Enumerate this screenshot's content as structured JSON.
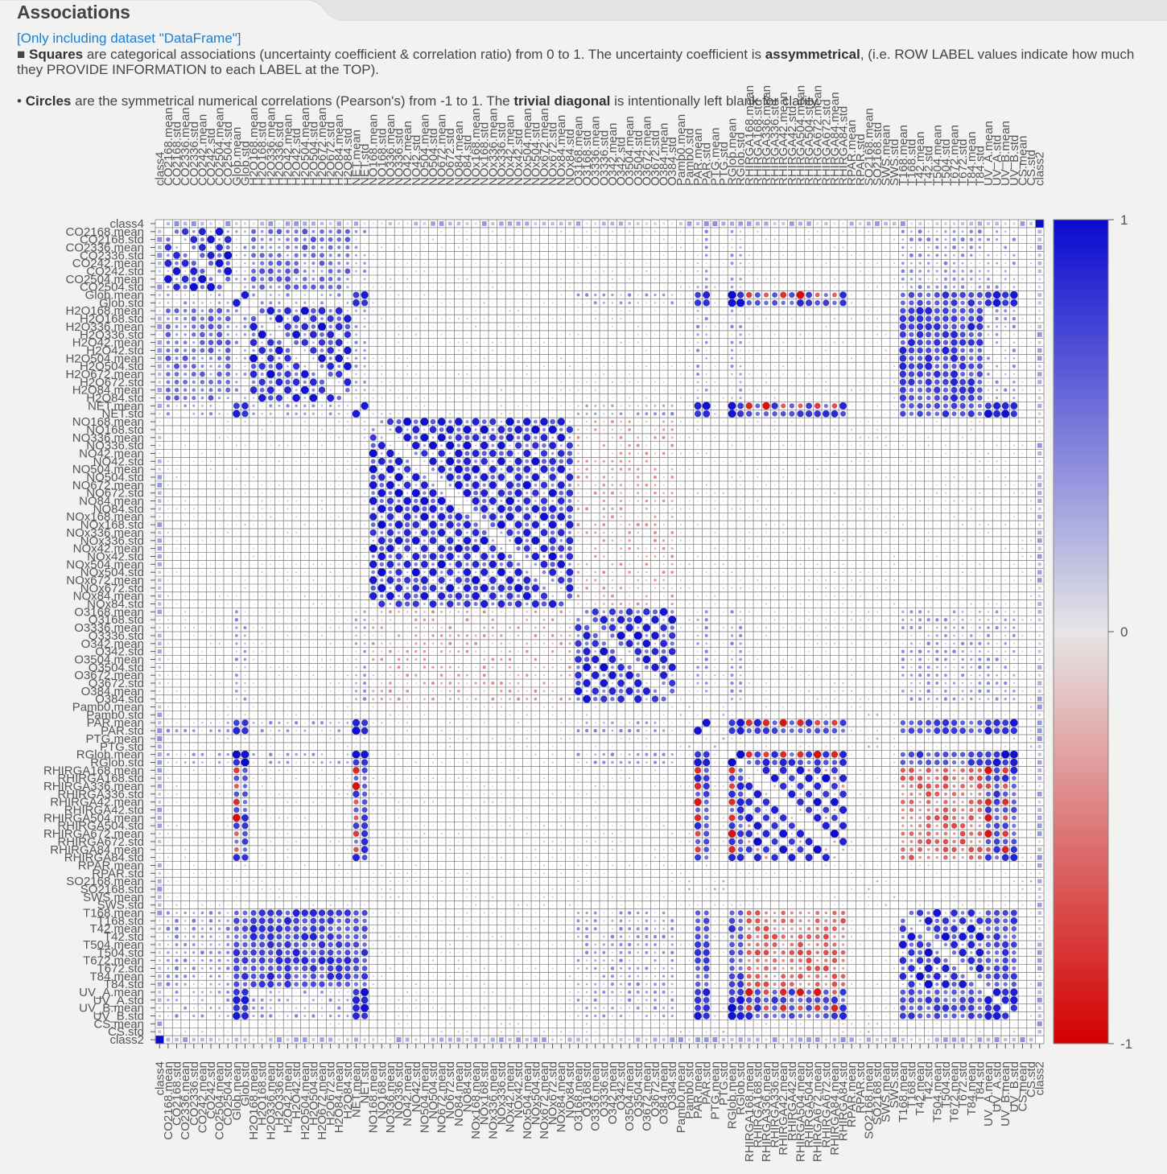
{
  "section": {
    "title": "Associations",
    "dataset_note": "[Only including dataset \"DataFrame\"]"
  },
  "description": {
    "squares_bullet": "■",
    "squares_word": "Squares",
    "squares_text_a": " are categorical associations (uncertainty coefficient & correlation ratio) from 0 to 1. The uncertainty coefficient is ",
    "assym_word": "assymmetrical",
    "squares_text_b": ", (i.e. ROW LABEL values indicate how much they PROVIDE INFORMATION to each LABEL at the TOP).",
    "circles_bullet": "•",
    "circles_word": "Circles",
    "circles_text_a": " are the symmetrical numerical correlations (Pearson's) from -1 to 1. The ",
    "diag_word": "trivial diagonal",
    "circles_text_b": " is intentionally left blank for clarity."
  },
  "colors": {
    "positive": "#0a0ad0",
    "neutral": "#e6e6e6",
    "negative": "#d40000",
    "grid": "#777777"
  },
  "chart_data": {
    "type": "heatmap",
    "title": "",
    "variables": [
      "class4",
      "CO2168.mean",
      "CO2168.std",
      "CO2336.mean",
      "CO2336.std",
      "CO242.mean",
      "CO242.std",
      "CO2504.mean",
      "CO2504.std",
      "Glob.mean",
      "Glob.std",
      "H2O168.mean",
      "H2O168.std",
      "H2O336.mean",
      "H2O336.std",
      "H2O42.mean",
      "H2O42.std",
      "H2O504.mean",
      "H2O504.std",
      "H2O672.mean",
      "H2O672.std",
      "H2O84.mean",
      "H2O84.std",
      "NET.mean",
      "NET.std",
      "NO168.mean",
      "NO168.std",
      "NO336.mean",
      "NO336.std",
      "NO42.mean",
      "NO42.std",
      "NO504.mean",
      "NO504.std",
      "NO672.mean",
      "NO672.std",
      "NO84.mean",
      "NO84.std",
      "NOx168.mean",
      "NOx168.std",
      "NOx336.mean",
      "NOx336.std",
      "NOx42.mean",
      "NOx42.std",
      "NOx504.mean",
      "NOx504.std",
      "NOx672.mean",
      "NOx672.std",
      "NOx84.mean",
      "NOx84.std",
      "O3168.mean",
      "O3168.std",
      "O3336.mean",
      "O3336.std",
      "O342.mean",
      "O342.std",
      "O3504.mean",
      "O3504.std",
      "O3672.mean",
      "O3672.std",
      "O384.mean",
      "O384.std",
      "Pamb0.mean",
      "Pamb0.std",
      "PAR.mean",
      "PAR.std",
      "PTG.mean",
      "PTG.std",
      "RGlob.mean",
      "RGlob.std",
      "RHIRGA168.mean",
      "RHIRGA168.std",
      "RHIRGA336.mean",
      "RHIRGA336.std",
      "RHIRGA42.mean",
      "RHIRGA42.std",
      "RHIRGA504.mean",
      "RHIRGA504.std",
      "RHIRGA672.mean",
      "RHIRGA672.std",
      "RHIRGA84.mean",
      "RHIRGA84.std",
      "RPAR.mean",
      "RPAR.std",
      "SO2168.mean",
      "SO2168.std",
      "SWS.mean",
      "SWS.std",
      "T168.mean",
      "T168.std",
      "T42.mean",
      "T42.std",
      "T504.mean",
      "T504.std",
      "T672.mean",
      "T672.std",
      "T84.mean",
      "T84.std",
      "UV_A.mean",
      "UV_A.std",
      "UV_B.mean",
      "UV_B.std",
      "CS.mean",
      "CS.std",
      "class2"
    ],
    "value_range": [
      -1,
      1
    ],
    "colorbar_ticks": [
      "1",
      "0",
      "-1"
    ],
    "marker_legend": {
      "square": "categorical association (0 to 1)",
      "circle": "numerical correlation (-1 to 1)"
    },
    "cells": "approximate correlation pattern: strong positive blocks within CO2, H2O, NO/NOx, O3, RHIRGA, T, UV groups; strong negatives between RHIRGA and radiation/temperature groups; diagonal blank"
  }
}
